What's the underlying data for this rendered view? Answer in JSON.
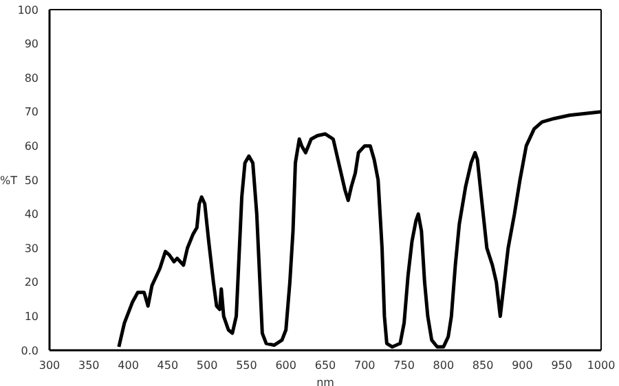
{
  "chart_data": {
    "type": "line",
    "xlabel": "nm",
    "ylabel": "%T",
    "x": [
      388,
      395,
      405,
      412,
      420,
      425,
      430,
      440,
      447,
      452,
      458,
      462,
      470,
      475,
      482,
      487,
      490,
      493,
      497,
      502,
      508,
      512,
      516,
      518,
      521,
      527,
      532,
      537,
      541,
      544,
      548,
      553,
      558,
      563,
      567,
      570,
      575,
      585,
      595,
      600,
      605,
      609,
      612,
      617,
      620,
      625,
      632,
      640,
      650,
      660,
      667,
      675,
      679,
      683,
      688,
      692,
      700,
      707,
      712,
      717,
      722,
      725,
      728,
      735,
      745,
      750,
      755,
      760,
      765,
      768,
      772,
      776,
      780,
      785,
      792,
      800,
      806,
      810,
      815,
      820,
      828,
      835,
      840,
      843,
      848,
      855,
      862,
      867,
      872,
      876,
      882,
      890,
      897,
      905,
      915,
      925,
      940,
      960,
      980,
      1000
    ],
    "series": [
      {
        "color": "#000000",
        "values": [
          1,
          8,
          14,
          17,
          17,
          13,
          19,
          24,
          29,
          28,
          26,
          27,
          25,
          30,
          34,
          36,
          43,
          45,
          43,
          32,
          20,
          13,
          12,
          18,
          10,
          6,
          5,
          10,
          30,
          45,
          55,
          57,
          55,
          40,
          20,
          5,
          2,
          1.5,
          3,
          6,
          20,
          35,
          55,
          62,
          60,
          58,
          62,
          63,
          63.5,
          62,
          55,
          47,
          44,
          48,
          52,
          58,
          60,
          60,
          56,
          50,
          30,
          10,
          2,
          1,
          2,
          8,
          22,
          32,
          38,
          40,
          35,
          20,
          10,
          3,
          1,
          1,
          4,
          10,
          25,
          37,
          48,
          55,
          58,
          56,
          45,
          30,
          25,
          20,
          10,
          18,
          30,
          40,
          50,
          60,
          65,
          67,
          68,
          69,
          69.5,
          70
        ]
      }
    ],
    "xlim": [
      300,
      1000
    ],
    "xticks": [
      300,
      350,
      400,
      450,
      500,
      550,
      600,
      650,
      700,
      750,
      800,
      850,
      900,
      950,
      1000
    ],
    "ylim": [
      0,
      100
    ],
    "yticks": [
      {
        "value": 0,
        "label": "0.0"
      },
      10,
      20,
      30,
      40,
      50,
      60,
      70,
      80,
      90,
      100
    ],
    "grid": false,
    "legend": false,
    "marker": "none",
    "line_style": "solid"
  }
}
